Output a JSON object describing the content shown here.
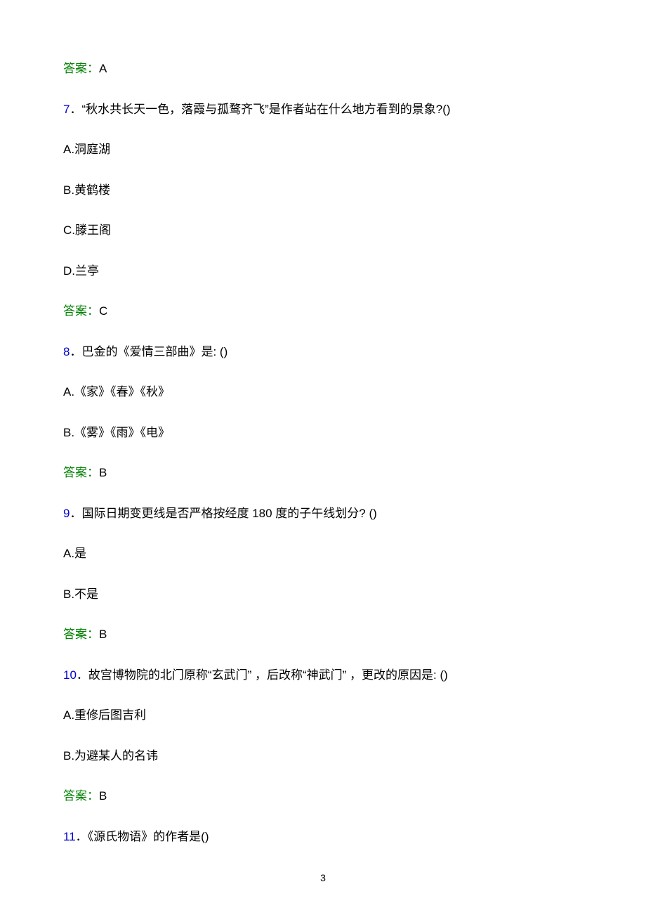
{
  "colors": {
    "answer_label": "#008000",
    "question_number": "#0000cc",
    "text": "#000000",
    "background": "#ffffff"
  },
  "typography": {
    "body_fontsize": 17,
    "page_number_fontsize": 14,
    "line_spacing": 32
  },
  "prev_answer": {
    "label": "答案：",
    "value": "A"
  },
  "questions": [
    {
      "number": "7",
      "separator": "．",
      "text": "“秋水共长天一色，落霞与孤鹜齐飞”是作者站在什么地方看到的景象?()",
      "options": [
        "A.洞庭湖",
        "B.黄鹤楼",
        "C.滕王阁",
        "D.兰亭"
      ],
      "answer_label": "答案：",
      "answer_value": "C"
    },
    {
      "number": "8",
      "separator": "．",
      "text": "巴金的《爱情三部曲》是: ()",
      "options": [
        "A.《家》《春》《秋》",
        "B.《雾》《雨》《电》"
      ],
      "answer_label": "答案：",
      "answer_value": "B"
    },
    {
      "number": "9",
      "separator": "．",
      "text": "国际日期变更线是否严格按经度 180 度的子午线划分? ()",
      "options": [
        "A.是",
        "B.不是"
      ],
      "answer_label": "答案：",
      "answer_value": "B"
    },
    {
      "number": "10",
      "separator": "．",
      "text": "故宫博物院的北门原称“玄武门”  ，后改称“神武门”  ，更改的原因是: ()",
      "options": [
        "A.重修后图吉利",
        "B.为避某人的名讳"
      ],
      "answer_label": "答案：",
      "answer_value": "B"
    },
    {
      "number": "11",
      "separator": "．",
      "text": "《源氏物语》的作者是()",
      "options": [],
      "answer_label": "",
      "answer_value": ""
    }
  ],
  "page_number": "3"
}
